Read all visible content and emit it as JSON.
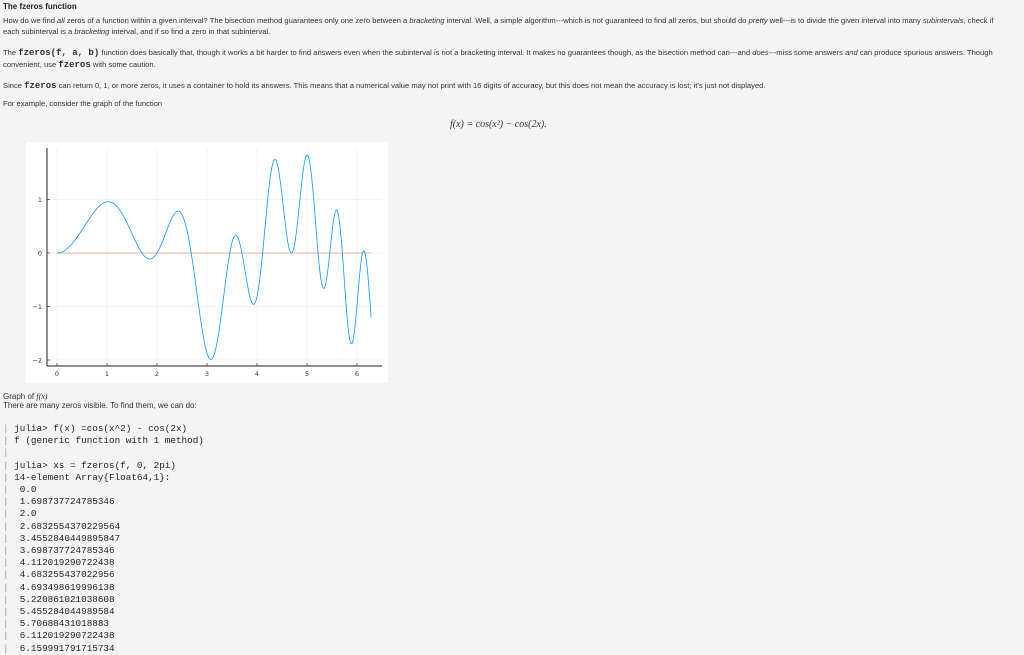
{
  "title": "The fzeros function",
  "p1": {
    "a": "How do we find ",
    "b": "all",
    "c": " zeros of a function within a given interval? The bisection method guarantees only one zero between a ",
    "d": "bracketing",
    "e": " interval. Well, a simple algorithm---which is not guaranteed to find all zeros, but should do ",
    "f": "pretty",
    "g": " well---is to divide the given interval into many ",
    "h": "subintervals",
    "i": ", check if each subinterval is a ",
    "j": "bracketing",
    "k": " interval, and if so find a zero in that subinterval."
  },
  "p2": {
    "a": "The ",
    "code1": "fzeros(f, a, b)",
    "b": " function does basically that, though it works a bit harder to find answers even when the subinterval is not a bracketing interval. It makes no guarantees though, as the bisection method can---and ",
    "c": "does",
    "d": "---miss some answers ",
    "e": "and",
    "f": " can produce spurious answers. Though convenient, use ",
    "code2": "fzeros",
    "g": " with some caution."
  },
  "p3": {
    "a": "Since ",
    "code": "fzeros",
    "b": " can return 0, 1, or more zeros, it uses a container to hold its answers. This means that a numerical value may not print with 16 digits of accuracy, but this does not mean the accuracy is lost; it's just not displayed."
  },
  "p4": "For example, consider the graph of the function",
  "formula": "f(x) = cos(x²) − cos(2x).",
  "caption": {
    "a": "Graph of ",
    "b": "f(x)"
  },
  "p5": "There are many zeros visible. To find them, we can do:",
  "code_lines": [
    "julia> f(x) =cos(x^2) - cos(2x)",
    "f (generic function with 1 method)",
    "",
    "julia> xs = fzeros(f, 0, 2pi)",
    "14-element Array{Float64,1}:",
    " 0.0",
    " 1.698737724785346",
    " 2.0",
    " 2.6832554370229564",
    " 3.4552840449895847",
    " 3.698737724785346",
    " 4.112019290722438",
    " 4.683255437022956",
    " 4.693498619996138",
    " 5.220861021038608",
    " 5.455284044989584",
    " 5.70688431018883",
    " 6.112019290722438",
    " 6.159991791715734"
  ],
  "chart_data": {
    "type": "line",
    "xlim": [
      0,
      6.2832
    ],
    "ylim": [
      -2,
      1.8
    ],
    "xticks": [
      "0",
      "1",
      "2",
      "3",
      "4",
      "5",
      "6"
    ],
    "yticks": [
      "1",
      "0",
      "-1",
      "-2"
    ],
    "grid": true,
    "series": [
      {
        "function": "cos(x^2) - cos(2x)",
        "x_range": [
          0,
          6.2832
        ],
        "color": "#0099ff"
      },
      {
        "function": "0",
        "x_range": [
          0,
          6.2832
        ],
        "color": "#f4cfc4"
      }
    ]
  }
}
